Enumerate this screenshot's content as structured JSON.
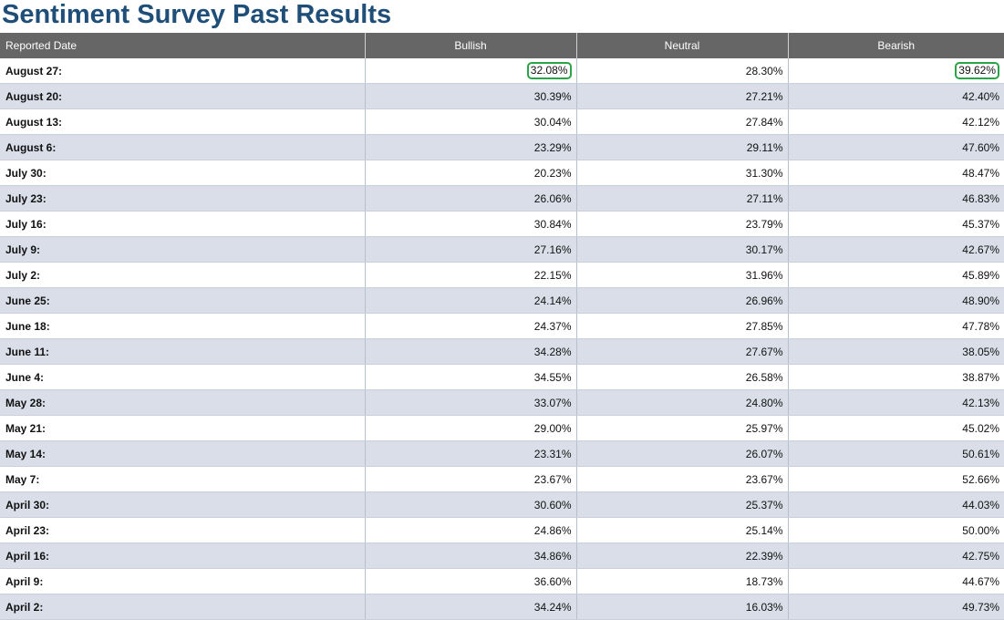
{
  "page": {
    "title": "Sentiment Survey Past Results"
  },
  "table": {
    "headers": {
      "date": "Reported Date",
      "bullish": "Bullish",
      "neutral": "Neutral",
      "bearish": "Bearish"
    },
    "rows": [
      {
        "date": "August 27:",
        "bullish": "32.08%",
        "neutral": "28.30%",
        "bearish": "39.62%"
      },
      {
        "date": "August 20:",
        "bullish": "30.39%",
        "neutral": "27.21%",
        "bearish": "42.40%"
      },
      {
        "date": "August 13:",
        "bullish": "30.04%",
        "neutral": "27.84%",
        "bearish": "42.12%"
      },
      {
        "date": "August 6:",
        "bullish": "23.29%",
        "neutral": "29.11%",
        "bearish": "47.60%"
      },
      {
        "date": "July 30:",
        "bullish": "20.23%",
        "neutral": "31.30%",
        "bearish": "48.47%"
      },
      {
        "date": "July 23:",
        "bullish": "26.06%",
        "neutral": "27.11%",
        "bearish": "46.83%"
      },
      {
        "date": "July 16:",
        "bullish": "30.84%",
        "neutral": "23.79%",
        "bearish": "45.37%"
      },
      {
        "date": "July 9:",
        "bullish": "27.16%",
        "neutral": "30.17%",
        "bearish": "42.67%"
      },
      {
        "date": "July 2:",
        "bullish": "22.15%",
        "neutral": "31.96%",
        "bearish": "45.89%"
      },
      {
        "date": "June 25:",
        "bullish": "24.14%",
        "neutral": "26.96%",
        "bearish": "48.90%"
      },
      {
        "date": "June 18:",
        "bullish": "24.37%",
        "neutral": "27.85%",
        "bearish": "47.78%"
      },
      {
        "date": "June 11:",
        "bullish": "34.28%",
        "neutral": "27.67%",
        "bearish": "38.05%"
      },
      {
        "date": "June 4:",
        "bullish": "34.55%",
        "neutral": "26.58%",
        "bearish": "38.87%"
      },
      {
        "date": "May 28:",
        "bullish": "33.07%",
        "neutral": "24.80%",
        "bearish": "42.13%"
      },
      {
        "date": "May 21:",
        "bullish": "29.00%",
        "neutral": "25.97%",
        "bearish": "45.02%"
      },
      {
        "date": "May 14:",
        "bullish": "23.31%",
        "neutral": "26.07%",
        "bearish": "50.61%"
      },
      {
        "date": "May 7:",
        "bullish": "23.67%",
        "neutral": "23.67%",
        "bearish": "52.66%"
      },
      {
        "date": "April 30:",
        "bullish": "30.60%",
        "neutral": "25.37%",
        "bearish": "44.03%"
      },
      {
        "date": "April 23:",
        "bullish": "24.86%",
        "neutral": "25.14%",
        "bearish": "50.00%"
      },
      {
        "date": "April 16:",
        "bullish": "34.86%",
        "neutral": "22.39%",
        "bearish": "42.75%"
      },
      {
        "date": "April 9:",
        "bullish": "36.60%",
        "neutral": "18.73%",
        "bearish": "44.67%"
      },
      {
        "date": "April 2:",
        "bullish": "34.24%",
        "neutral": "16.03%",
        "bearish": "49.73%"
      }
    ]
  },
  "colors": {
    "title": "#1f4e79",
    "header_bg": "#666666",
    "row_alt_bg": "#d9dee8",
    "highlight_outline": "#2aa447"
  }
}
